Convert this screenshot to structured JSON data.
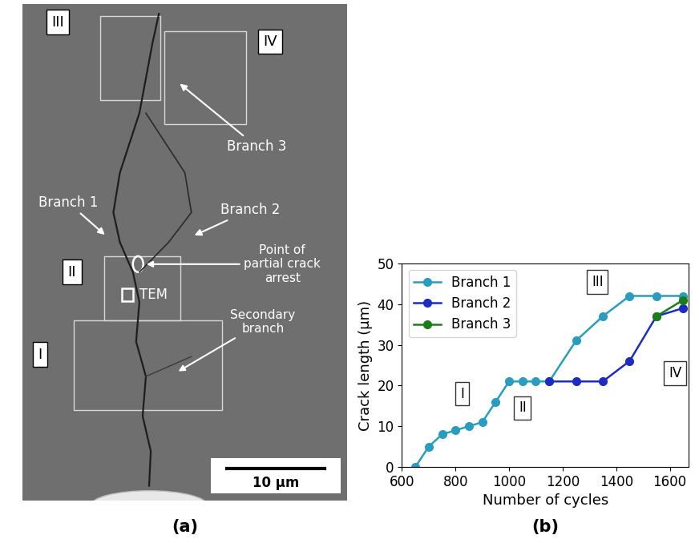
{
  "chart_data": {
    "type": "line",
    "panel_label": "(b)",
    "x_label": "Number of cycles",
    "y_label": "Crack length (μm)",
    "xlim": [
      600,
      1670
    ],
    "ylim": [
      0,
      50
    ],
    "xticks": [
      600,
      800,
      1000,
      1200,
      1400,
      1600
    ],
    "yticks": [
      0,
      10,
      20,
      30,
      40,
      50
    ],
    "grid": false,
    "legend": "upper left",
    "marker": "o",
    "line_style": "solid",
    "series": [
      {
        "name": "Branch 1",
        "color": "#2a9dbf",
        "x": [
          650,
          700,
          750,
          800,
          850,
          900,
          950,
          1000,
          1050,
          1100,
          1150,
          1250,
          1350,
          1450,
          1550,
          1650
        ],
        "values": [
          0,
          5,
          8,
          9,
          10,
          11,
          16,
          21,
          21,
          21,
          21,
          31,
          37,
          42,
          42,
          42
        ]
      },
      {
        "name": "Branch 2",
        "color": "#1c2cc2",
        "x": [
          1150,
          1250,
          1350,
          1450,
          1550,
          1650
        ],
        "values": [
          21,
          21,
          21,
          26,
          37,
          39
        ]
      },
      {
        "name": "Branch 3",
        "color": "#1a7d1a",
        "x": [
          1550,
          1650
        ],
        "values": [
          37,
          41
        ]
      }
    ],
    "annotations": [
      {
        "text": "I",
        "x": 825,
        "y": 18
      },
      {
        "text": "II",
        "x": 1050,
        "y": 14.5
      },
      {
        "text": "III",
        "x": 1330,
        "y": 45.5
      },
      {
        "text": "IV",
        "x": 1620,
        "y": 23
      }
    ]
  },
  "micrograph": {
    "panel_label": "(a)",
    "regions": [
      "I",
      "II",
      "III",
      "IV"
    ],
    "branch_1": "Branch 1",
    "branch_2": "Branch 2",
    "branch_3": "Branch 3",
    "arrest": "Point of partial crack arrest",
    "tem": "TEM",
    "secondary": "Secondary branch",
    "scale_bar": "10 µm"
  }
}
